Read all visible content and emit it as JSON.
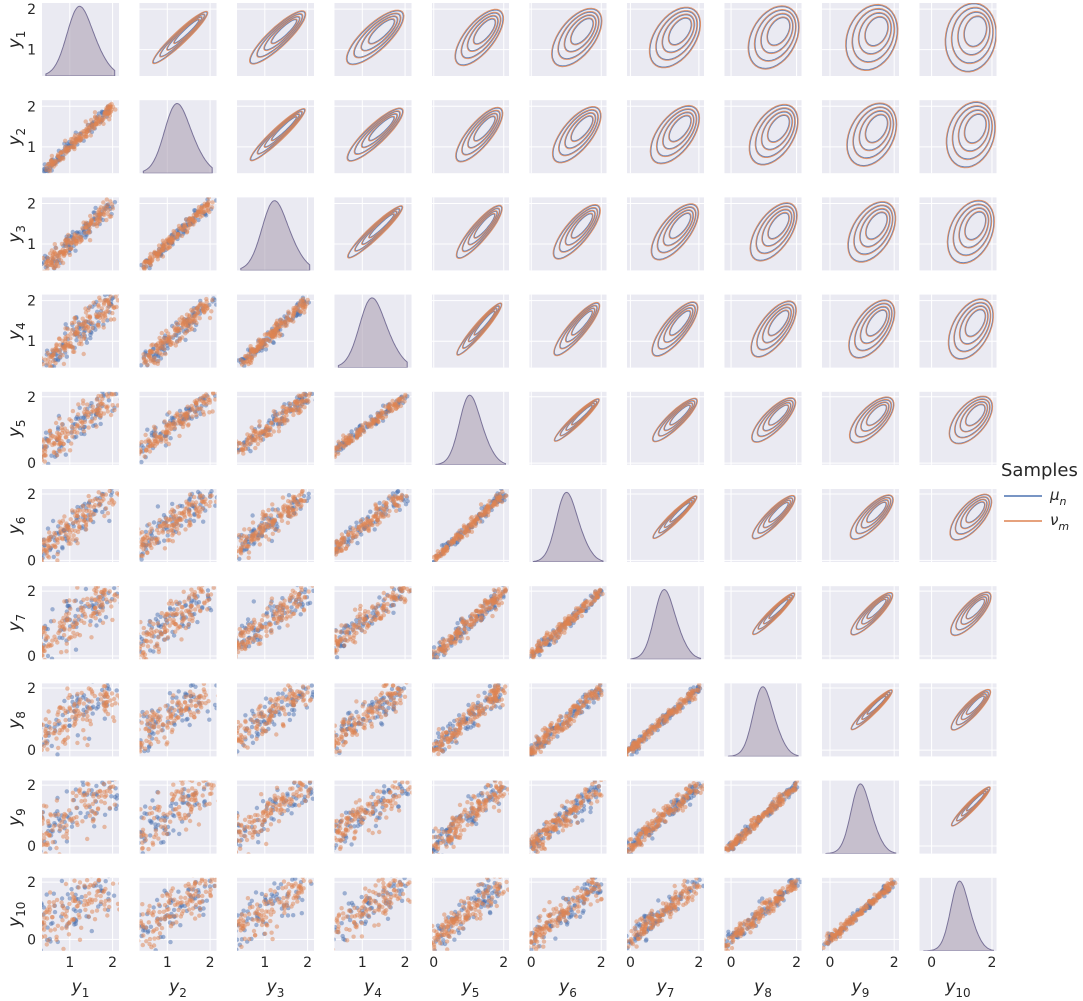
{
  "chart_data": {
    "type": "pairplot",
    "description_variables": [
      "y_1",
      "y_2",
      "y_3",
      "y_4",
      "y_5",
      "y_6",
      "y_7",
      "y_8",
      "y_9",
      "y_10"
    ],
    "variables": [
      {
        "base": "y",
        "sub": "1"
      },
      {
        "base": "y",
        "sub": "2"
      },
      {
        "base": "y",
        "sub": "3"
      },
      {
        "base": "y",
        "sub": "4"
      },
      {
        "base": "y",
        "sub": "5"
      },
      {
        "base": "y",
        "sub": "6"
      },
      {
        "base": "y",
        "sub": "7"
      },
      {
        "base": "y",
        "sub": "8"
      },
      {
        "base": "y",
        "sub": "9"
      },
      {
        "base": "y",
        "sub": "10"
      }
    ],
    "lower_triangle": "scatter",
    "upper_triangle": "kde_contour",
    "diagonal": "kde_density",
    "legend": {
      "title": "Samples",
      "placement": "right",
      "entries": [
        {
          "base": "μ",
          "sub": "n",
          "color": "#4c72b0"
        },
        {
          "base": "ν",
          "sub": "m",
          "color": "#dd8452"
        }
      ]
    },
    "axis_ranges": [
      [
        0.35,
        2.15
      ],
      [
        0.35,
        2.15
      ],
      [
        0.35,
        2.15
      ],
      [
        0.35,
        2.15
      ],
      [
        -0.05,
        2.15
      ],
      [
        -0.05,
        2.15
      ],
      [
        -0.1,
        2.15
      ],
      [
        -0.2,
        2.15
      ],
      [
        -0.25,
        2.15
      ],
      [
        -0.4,
        2.15
      ]
    ],
    "axis_ticks": [
      [
        1,
        2
      ],
      [
        1,
        2
      ],
      [
        1,
        2
      ],
      [
        1,
        2
      ],
      [
        0,
        2
      ],
      [
        0,
        2
      ],
      [
        0,
        2
      ],
      [
        0,
        2
      ],
      [
        0,
        2
      ],
      [
        0,
        2
      ]
    ],
    "background": "#eaeaf2",
    "grid": true
  }
}
